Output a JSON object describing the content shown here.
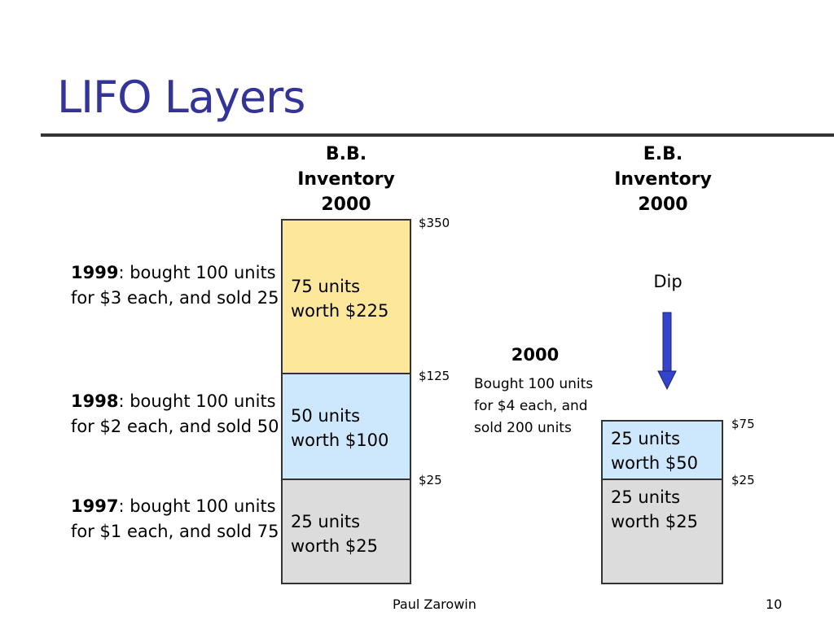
{
  "slide": {
    "title": "LIFO Layers",
    "footer_author": "Paul Zarowin",
    "page_number": "10"
  },
  "bb_header": [
    "B.B.",
    "Inventory",
    "2000"
  ],
  "eb_header": [
    "E.B.",
    "Inventory",
    "2000"
  ],
  "layers": [
    {
      "year": "1999",
      "text": ": bought 100 units for $3 each, and sold 25",
      "box": [
        "75 units",
        "worth $225"
      ],
      "color": "#FDE79B"
    },
    {
      "year": "1998",
      "text": ": bought 100 units for $2 each, and sold 50",
      "box": [
        "50 units",
        "worth $100"
      ],
      "color": "#CDE8FC"
    },
    {
      "year": "1997",
      "text": ": bought 100 units for $1 each, and sold 75",
      "box": [
        "25 units",
        "worth $25"
      ],
      "color": "#DCDCDC"
    }
  ],
  "bb_amounts": [
    "$350",
    "$125",
    "$25"
  ],
  "year_2000": {
    "label": "2000",
    "note": "Bought 100 units for $4 each, and sold 200 units"
  },
  "dip_label": "Dip",
  "eb_layers": [
    {
      "box": [
        "25 units",
        "worth $50"
      ],
      "color": "#CDE8FC"
    },
    {
      "box": [
        "25 units",
        "worth $25"
      ],
      "color": "#DCDCDC"
    }
  ],
  "eb_amounts": [
    "$75",
    "$25"
  ],
  "colors": {
    "title": "#333399",
    "arrow": "#3344CC"
  }
}
